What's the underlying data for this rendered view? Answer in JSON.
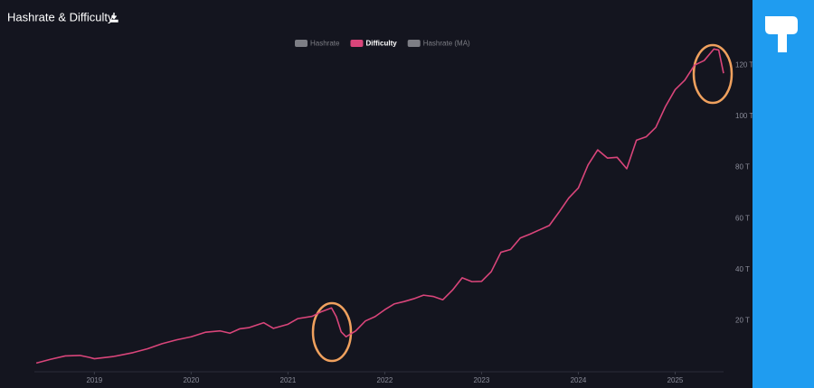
{
  "chart_data": {
    "type": "line",
    "title": "Hashrate & Difficulty",
    "x": [
      2018.4,
      2018.55,
      2018.7,
      2018.85,
      2018.95,
      2019.0,
      2019.2,
      2019.4,
      2019.55,
      2019.7,
      2019.85,
      2020.0,
      2020.15,
      2020.3,
      2020.4,
      2020.5,
      2020.6,
      2020.75,
      2020.85,
      2021.0,
      2021.1,
      2021.25,
      2021.35,
      2021.45,
      2021.5,
      2021.55,
      2021.6,
      2021.7,
      2021.8,
      2021.9,
      2022.0,
      2022.1,
      2022.2,
      2022.3,
      2022.4,
      2022.5,
      2022.6,
      2022.7,
      2022.8,
      2022.9,
      2023.0,
      2023.1,
      2023.2,
      2023.3,
      2023.4,
      2023.5,
      2023.6,
      2023.7,
      2023.8,
      2023.9,
      2024.0,
      2024.1,
      2024.2,
      2024.3,
      2024.4,
      2024.5,
      2024.6,
      2024.7,
      2024.8,
      2024.9,
      2025.0,
      2025.1,
      2025.2,
      2025.3,
      2025.4,
      2025.45,
      2025.5
    ],
    "series": [
      {
        "name": "Hashrate",
        "color": "#7d7e85",
        "hidden": true
      },
      {
        "name": "Difficulty",
        "color": "#d9457a",
        "values": [
          3.4,
          4.9,
          6.2,
          6.4,
          5.6,
          5.1,
          6.0,
          7.5,
          9.0,
          11.0,
          12.5,
          13.7,
          15.5,
          16.0,
          15.1,
          16.8,
          17.3,
          19.2,
          17.0,
          18.6,
          20.8,
          21.7,
          23.6,
          25.0,
          21.5,
          15.6,
          13.7,
          16.0,
          19.9,
          21.6,
          24.3,
          26.6,
          27.5,
          28.6,
          30.0,
          29.5,
          28.2,
          32.0,
          36.8,
          35.3,
          35.4,
          39.2,
          46.8,
          47.9,
          52.4,
          53.9,
          55.6,
          57.3,
          62.5,
          68.0,
          72.0,
          81.0,
          86.9,
          83.7,
          84.0,
          79.5,
          90.7,
          92.0,
          95.7,
          103.9,
          110.5,
          114.2,
          120.1,
          121.9,
          126.4,
          126.0,
          116.9
        ]
      },
      {
        "name": "Hashrate (MA)",
        "color": "#7d7e85",
        "hidden": true
      }
    ],
    "xlim": [
      2018.38,
      2025.5
    ],
    "xticks": [
      2019,
      2020,
      2021,
      2022,
      2023,
      2024,
      2025
    ],
    "ylim": [
      0,
      135
    ],
    "yticks": [
      {
        "value": 20,
        "label": "20 T"
      },
      {
        "value": 40,
        "label": "40 T"
      },
      {
        "value": 60,
        "label": "60 T"
      },
      {
        "value": 80,
        "label": "80 T"
      },
      {
        "value": 100,
        "label": "100 T"
      },
      {
        "value": 120,
        "label": "120 T"
      }
    ],
    "grid": false
  }
}
